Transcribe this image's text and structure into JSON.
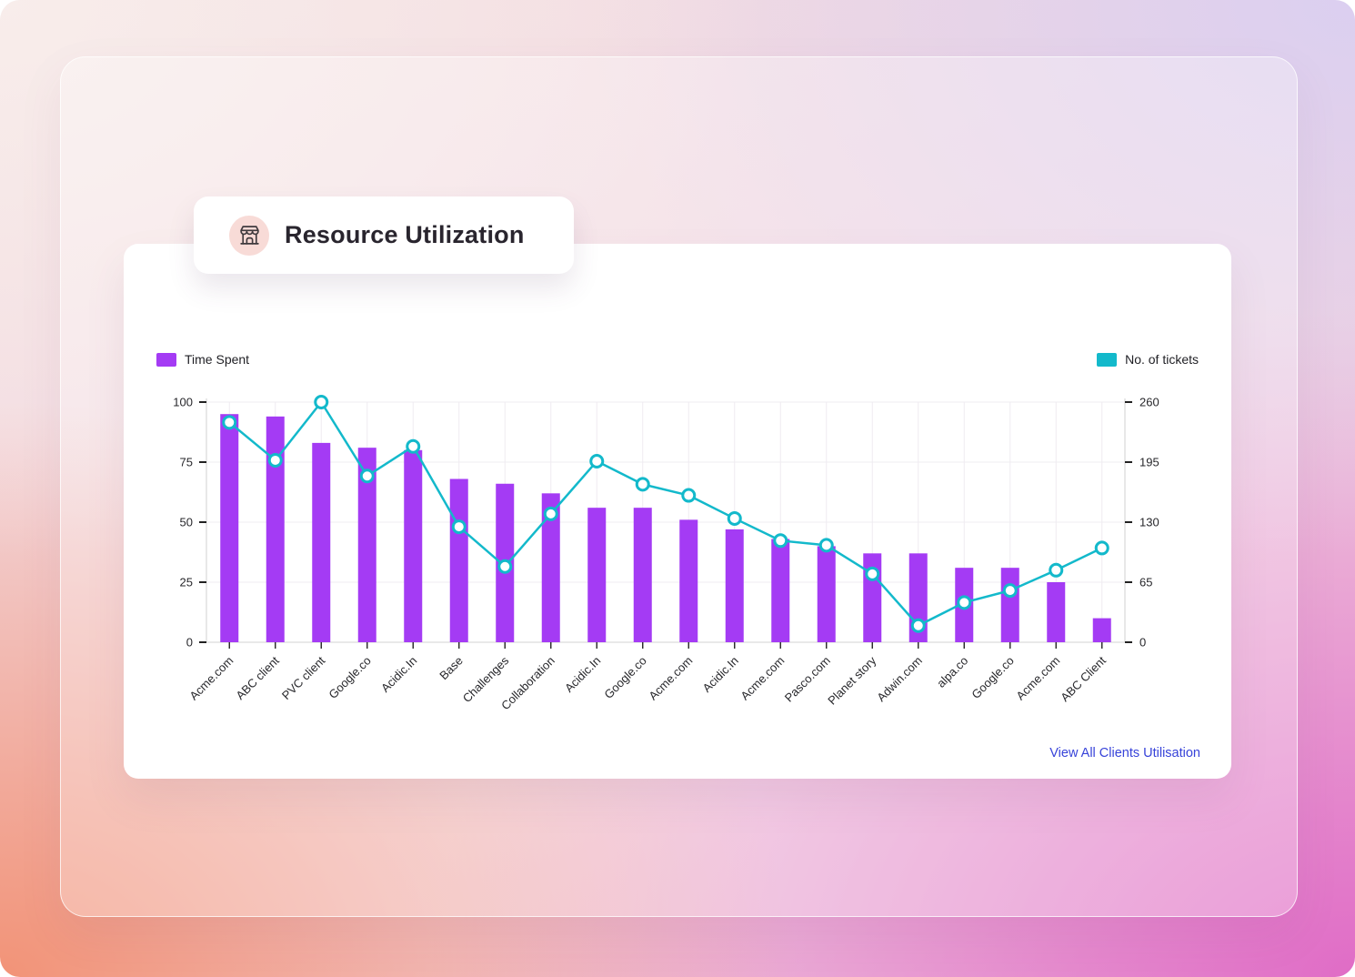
{
  "header": {
    "title": "Resource Utilization",
    "icon": "storefront-icon"
  },
  "footer": {
    "view_all_link": "View All Clients Utilisation"
  },
  "colors": {
    "bar_purple": "#a43bf4",
    "line_teal": "#13b9cb",
    "link_blue": "#3743d9",
    "icon_circle_pink": "#f8dbd7",
    "axis_line": "#dcdcdc",
    "grid_line": "#efecf1",
    "tick_text": "#27272b"
  },
  "chart_data": {
    "type": "bar+line",
    "categories": [
      "Acme.com",
      "ABC client",
      "PVC client",
      "Google.co",
      "Acidic.In",
      "Base",
      "Challenges",
      "Collaboration",
      "Acidic.In",
      "Google.co",
      "Acme.com",
      "Acidic.In",
      "Acme.com",
      "Pasco.com",
      "Planet story",
      "Adwin.com",
      "alpa.co",
      "Google.co",
      "Acme.com",
      "ABC Client"
    ],
    "series": [
      {
        "name": "Time Spent",
        "type": "bar",
        "axis": "left",
        "color": "#a43bf4",
        "values": [
          95,
          94,
          83,
          81,
          80,
          68,
          66,
          62,
          56,
          56,
          51,
          47,
          43,
          40,
          37,
          37,
          31,
          31,
          25,
          10
        ]
      },
      {
        "name": "No. of tickets",
        "type": "line",
        "axis": "right",
        "color": "#13b9cb",
        "marker": "hollow-circle",
        "values": [
          238,
          197,
          260,
          180,
          212,
          125,
          82,
          139,
          196,
          171,
          159,
          134,
          110,
          105,
          74,
          18,
          43,
          56,
          78,
          102
        ]
      }
    ],
    "left_axis": {
      "min": 0,
      "max": 100,
      "ticks": [
        0,
        25,
        50,
        75,
        100
      ]
    },
    "right_axis": {
      "min": 0,
      "max": 260,
      "ticks": [
        0,
        65,
        130,
        195,
        260
      ]
    },
    "x_labels_rotation_deg": -45,
    "grid": true,
    "legend_position": "top-left and top-right"
  }
}
